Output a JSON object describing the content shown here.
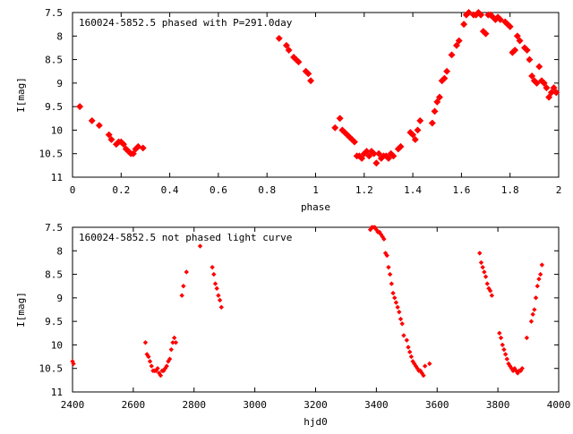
{
  "chart_data": [
    {
      "type": "scatter",
      "title": "160024-5852.5 phased with P=291.0day",
      "xlabel": "phase",
      "ylabel": "I[mag]",
      "xlim": [
        0,
        2
      ],
      "ylim": [
        11,
        7.5
      ],
      "y_inverted": true,
      "x_ticks": [
        0,
        0.2,
        0.4,
        0.6,
        0.8,
        1,
        1.2,
        1.4,
        1.6,
        1.8,
        2
      ],
      "x_tick_labels": [
        "0",
        "0.2",
        "0.4",
        "0.6",
        "0.8",
        "1",
        "1.2",
        "1.4",
        "1.6",
        "1.8",
        "2"
      ],
      "y_ticks": [
        7.5,
        8,
        8.5,
        9,
        9.5,
        10,
        10.5,
        11
      ],
      "y_tick_labels": [
        "7.5",
        "8",
        "8.5",
        "9",
        "9.5",
        "10",
        "10.5",
        "11"
      ],
      "grid": false,
      "marker_color": "#ff0000",
      "series": [
        {
          "x": [
            0.03,
            0.08,
            0.11,
            0.15,
            0.16,
            0.18,
            0.19,
            0.2,
            0.21,
            0.22,
            0.23,
            0.24,
            0.25,
            0.26,
            0.27,
            0.29,
            0.85,
            0.88,
            0.89,
            0.91,
            0.92,
            0.93,
            0.96,
            0.97,
            0.98,
            1.08,
            1.1,
            1.11,
            1.12,
            1.13,
            1.14,
            1.15,
            1.16,
            1.17,
            1.18,
            1.19,
            1.2,
            1.21,
            1.22,
            1.23,
            1.24,
            1.25,
            1.26,
            1.27,
            1.28,
            1.29,
            1.3,
            1.31,
            1.32,
            1.34,
            1.35,
            1.39,
            1.4,
            1.41,
            1.42,
            1.43,
            1.48,
            1.49,
            1.5,
            1.51,
            1.52,
            1.53,
            1.54,
            1.56,
            1.58,
            1.59,
            1.61,
            1.62,
            1.63,
            1.65,
            1.66,
            1.67,
            1.68,
            1.69,
            1.7,
            1.71,
            1.72,
            1.73,
            1.74,
            1.75,
            1.76,
            1.78,
            1.79,
            1.8,
            1.81,
            1.82,
            1.83,
            1.84,
            1.86,
            1.87,
            1.88,
            1.89,
            1.9,
            1.91,
            1.92,
            1.93,
            1.94,
            1.95,
            1.96,
            1.97,
            1.98,
            1.99
          ],
          "y": [
            9.5,
            9.8,
            9.9,
            10.1,
            10.2,
            10.3,
            10.25,
            10.25,
            10.3,
            10.4,
            10.45,
            10.5,
            10.5,
            10.4,
            10.35,
            10.38,
            8.05,
            8.2,
            8.3,
            8.45,
            8.5,
            8.55,
            8.75,
            8.8,
            8.95,
            9.95,
            9.75,
            10.0,
            10.05,
            10.1,
            10.15,
            10.2,
            10.25,
            10.55,
            10.55,
            10.6,
            10.5,
            10.45,
            10.55,
            10.45,
            10.5,
            10.7,
            10.5,
            10.6,
            10.55,
            10.55,
            10.6,
            10.5,
            10.55,
            10.4,
            10.35,
            10.05,
            10.1,
            10.2,
            10.0,
            9.8,
            9.85,
            9.6,
            9.4,
            9.3,
            8.95,
            8.9,
            8.75,
            8.4,
            8.2,
            8.1,
            7.75,
            7.55,
            7.5,
            7.55,
            7.55,
            7.5,
            7.55,
            7.9,
            7.95,
            7.55,
            7.55,
            7.6,
            7.65,
            7.6,
            7.65,
            7.7,
            7.75,
            7.8,
            8.35,
            8.3,
            8.0,
            8.1,
            8.25,
            8.3,
            8.5,
            8.85,
            8.95,
            9.0,
            8.65,
            8.95,
            9.0,
            9.1,
            9.3,
            9.2,
            9.1,
            9.2
          ]
        }
      ]
    },
    {
      "type": "scatter",
      "title": "160024-5852.5 not phased light curve",
      "xlabel": "hjd0",
      "ylabel": "I[mag]",
      "xlim": [
        2400,
        4000
      ],
      "ylim": [
        11,
        7.5
      ],
      "y_inverted": true,
      "x_ticks": [
        2400,
        2600,
        2800,
        3000,
        3200,
        3400,
        3600,
        3800,
        4000
      ],
      "x_tick_labels": [
        "2400",
        "2600",
        "2800",
        "3000",
        "3200",
        "3400",
        "3600",
        "3800",
        "4000"
      ],
      "y_ticks": [
        7.5,
        8,
        8.5,
        9,
        9.5,
        10,
        10.5,
        11
      ],
      "y_tick_labels": [
        "7.5",
        "8",
        "8.5",
        "9",
        "9.5",
        "10",
        "10.5",
        "11"
      ],
      "grid": false,
      "marker_color": "#ff0000",
      "series": [
        {
          "x": [
            2400,
            2403,
            2640,
            2645,
            2650,
            2655,
            2660,
            2665,
            2670,
            2675,
            2680,
            2685,
            2690,
            2695,
            2700,
            2705,
            2710,
            2715,
            2720,
            2725,
            2730,
            2735,
            2740,
            2760,
            2765,
            2775,
            2820,
            2860,
            2865,
            2870,
            2875,
            2880,
            2885,
            2890,
            3380,
            3385,
            3390,
            3395,
            3400,
            3405,
            3410,
            3415,
            3420,
            3425,
            3430,
            3435,
            3440,
            3445,
            3450,
            3455,
            3460,
            3465,
            3470,
            3475,
            3480,
            3485,
            3490,
            3500,
            3505,
            3510,
            3515,
            3520,
            3525,
            3530,
            3535,
            3540,
            3545,
            3550,
            3555,
            3560,
            3575,
            3740,
            3745,
            3750,
            3755,
            3760,
            3765,
            3770,
            3775,
            3780,
            3805,
            3810,
            3815,
            3820,
            3825,
            3830,
            3835,
            3840,
            3845,
            3850,
            3855,
            3860,
            3865,
            3870,
            3875,
            3880,
            3895,
            3910,
            3915,
            3920,
            3925,
            3930,
            3935,
            3940,
            3945
          ],
          "y": [
            10.35,
            10.4,
            9.95,
            10.2,
            10.25,
            10.35,
            10.45,
            10.55,
            10.55,
            10.55,
            10.5,
            10.6,
            10.65,
            10.55,
            10.55,
            10.5,
            10.45,
            10.35,
            10.3,
            10.1,
            9.95,
            9.85,
            9.95,
            8.95,
            8.75,
            8.45,
            7.9,
            8.35,
            8.5,
            8.7,
            8.8,
            8.95,
            9.05,
            9.2,
            7.55,
            7.5,
            7.5,
            7.5,
            7.55,
            7.6,
            7.6,
            7.65,
            7.7,
            7.75,
            8.05,
            8.1,
            8.35,
            8.5,
            8.7,
            8.9,
            9.0,
            9.1,
            9.2,
            9.3,
            9.45,
            9.55,
            9.8,
            9.9,
            10.05,
            10.15,
            10.25,
            10.35,
            10.4,
            10.45,
            10.5,
            10.55,
            10.55,
            10.6,
            10.65,
            10.45,
            10.4,
            8.05,
            8.25,
            8.35,
            8.45,
            8.55,
            8.7,
            8.8,
            8.85,
            8.95,
            9.75,
            9.85,
            10.0,
            10.1,
            10.2,
            10.3,
            10.4,
            10.45,
            10.5,
            10.55,
            10.5,
            10.55,
            10.6,
            10.55,
            10.55,
            10.5,
            9.85,
            9.5,
            9.35,
            9.25,
            9.0,
            8.75,
            8.6,
            8.5,
            8.3
          ]
        }
      ]
    }
  ]
}
